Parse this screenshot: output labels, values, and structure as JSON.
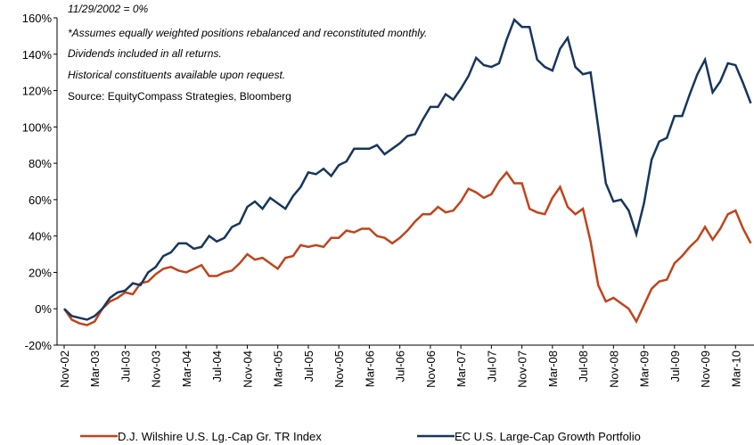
{
  "chart_data": {
    "type": "line",
    "notes": [
      "11/29/2002 = 0%",
      "*Assumes equally weighted positions rebalanced and reconstituted monthly.",
      "Dividends included in all returns.",
      "Historical constituents available upon request."
    ],
    "source": "Source: EquityCompass Strategies, Bloomberg",
    "categories": [
      "Nov-02",
      null,
      null,
      null,
      "Mar-03",
      null,
      null,
      null,
      "Jul-03",
      null,
      null,
      null,
      "Nov-03",
      null,
      null,
      null,
      "Mar-04",
      null,
      null,
      null,
      "Jul-04",
      null,
      null,
      null,
      "Nov-04",
      null,
      null,
      null,
      "Mar-05",
      null,
      null,
      null,
      "Jul-05",
      null,
      null,
      null,
      "Nov-05",
      null,
      null,
      null,
      "Mar-06",
      null,
      null,
      null,
      "Jul-06",
      null,
      null,
      null,
      "Nov-06",
      null,
      null,
      null,
      "Mar-07",
      null,
      null,
      null,
      "Jul-07",
      null,
      null,
      null,
      "Nov-07",
      null,
      null,
      null,
      "Mar-08",
      null,
      null,
      null,
      "Jul-08",
      null,
      null,
      null,
      "Nov-08",
      null,
      null,
      null,
      "Mar-09",
      null,
      null,
      null,
      "Jul-09",
      null,
      null,
      null,
      "Nov-09",
      null,
      null,
      null,
      "Mar-10",
      null,
      null
    ],
    "series": [
      {
        "name": "D.J. Wilshire U.S. Lg.-Cap Gr. TR Index",
        "color": "#c0441c",
        "values": [
          0,
          -6,
          -8,
          -9,
          -7,
          0,
          4,
          6,
          9,
          8,
          14,
          15,
          19,
          22,
          23,
          21,
          20,
          22,
          24,
          18,
          18,
          20,
          21,
          25,
          30,
          27,
          28,
          25,
          22,
          28,
          29,
          35,
          34,
          35,
          34,
          39,
          39,
          43,
          42,
          44,
          44,
          40,
          39,
          36,
          39,
          43,
          48,
          52,
          52,
          56,
          53,
          54,
          59,
          66,
          64,
          61,
          63,
          70,
          75,
          69,
          69,
          55,
          53,
          52,
          61,
          67,
          56,
          52,
          55,
          37,
          13,
          4,
          6,
          3,
          0,
          -7,
          2,
          11,
          15,
          16,
          25,
          29,
          34,
          38,
          45,
          38,
          44,
          52,
          54,
          44,
          36
        ]
      },
      {
        "name": "EC U.S. Large-Cap Growth Portfolio",
        "color": "#17365d",
        "values": [
          0,
          -4,
          -5,
          -6,
          -4,
          0,
          6,
          9,
          10,
          14,
          13,
          20,
          23,
          29,
          31,
          36,
          36,
          33,
          34,
          40,
          37,
          39,
          45,
          47,
          56,
          59,
          55,
          61,
          58,
          55,
          62,
          67,
          75,
          74,
          77,
          73,
          79,
          81,
          88,
          88,
          88,
          90,
          85,
          88,
          91,
          95,
          96,
          104,
          111,
          111,
          118,
          115,
          121,
          128,
          138,
          134,
          133,
          135,
          148,
          159,
          155,
          155,
          137,
          133,
          131,
          143,
          149,
          133,
          129,
          130,
          100,
          69,
          59,
          60,
          54,
          41,
          58,
          82,
          92,
          94,
          106,
          106,
          118,
          129,
          137,
          119,
          125,
          135,
          134,
          124,
          113
        ]
      }
    ],
    "ylim": [
      -20,
      160
    ],
    "yticks": [
      {
        "value": -20,
        "label": "-20%"
      },
      {
        "value": 0,
        "label": "0%"
      },
      {
        "value": 20,
        "label": "20%"
      },
      {
        "value": 40,
        "label": "40%"
      },
      {
        "value": 60,
        "label": "60%"
      },
      {
        "value": 80,
        "label": "80%"
      },
      {
        "value": 100,
        "label": "100%"
      },
      {
        "value": 120,
        "label": "120%"
      },
      {
        "value": 140,
        "label": "140%"
      },
      {
        "value": 160,
        "label": "160%"
      }
    ]
  }
}
